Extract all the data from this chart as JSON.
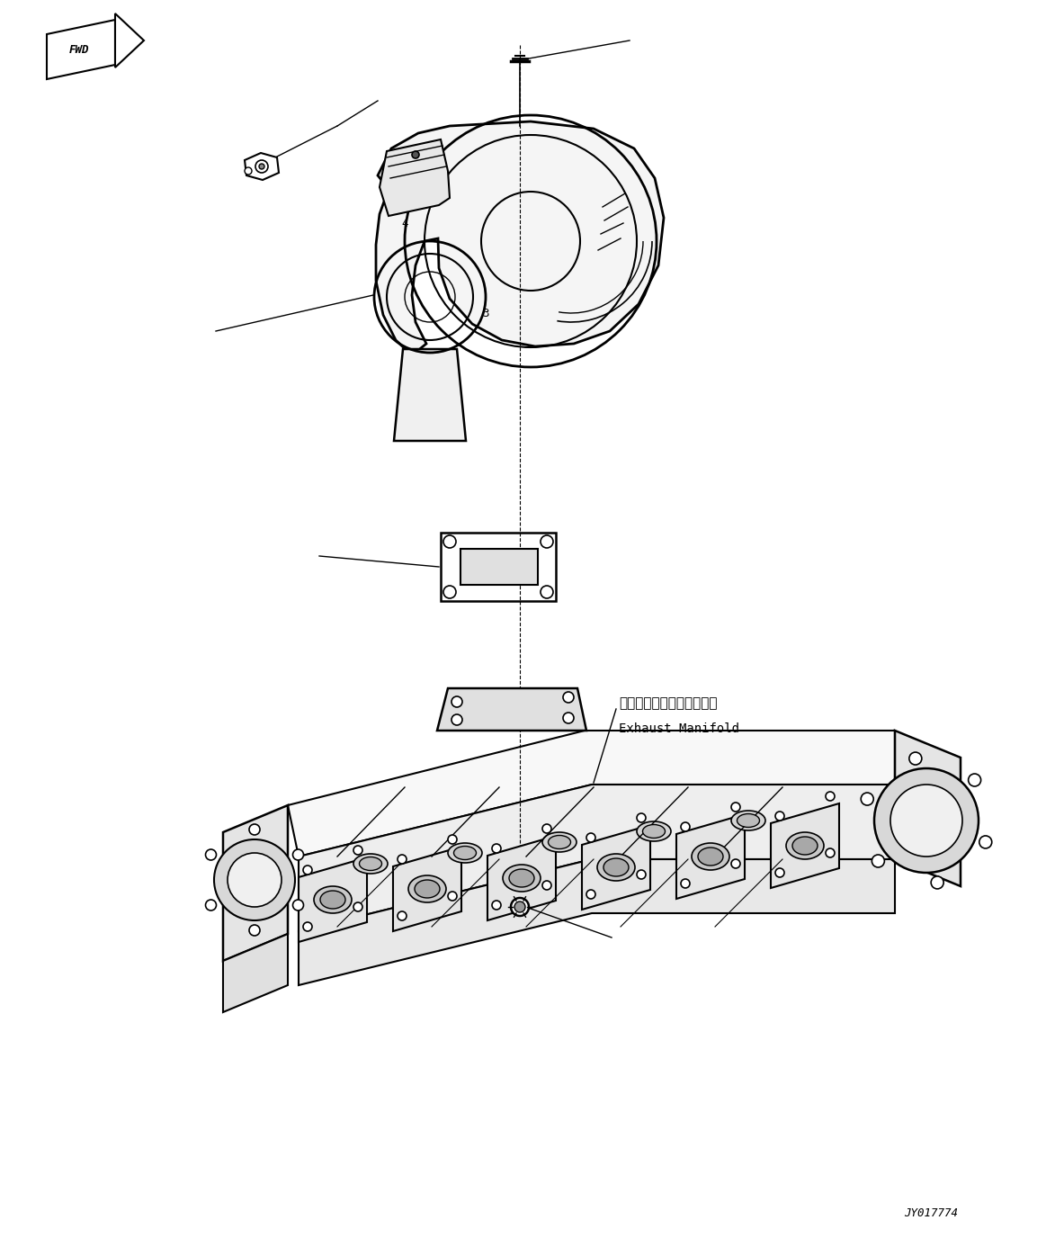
{
  "background_color": "#ffffff",
  "line_color": "#000000",
  "fig_width": 11.63,
  "fig_height": 13.76,
  "dpi": 100,
  "fwd_label": "FWD",
  "exhaust_label_jp": "エキゾーストマニホールド",
  "exhaust_label_en": "Exhaust Manifold",
  "part_number": "JY017774"
}
